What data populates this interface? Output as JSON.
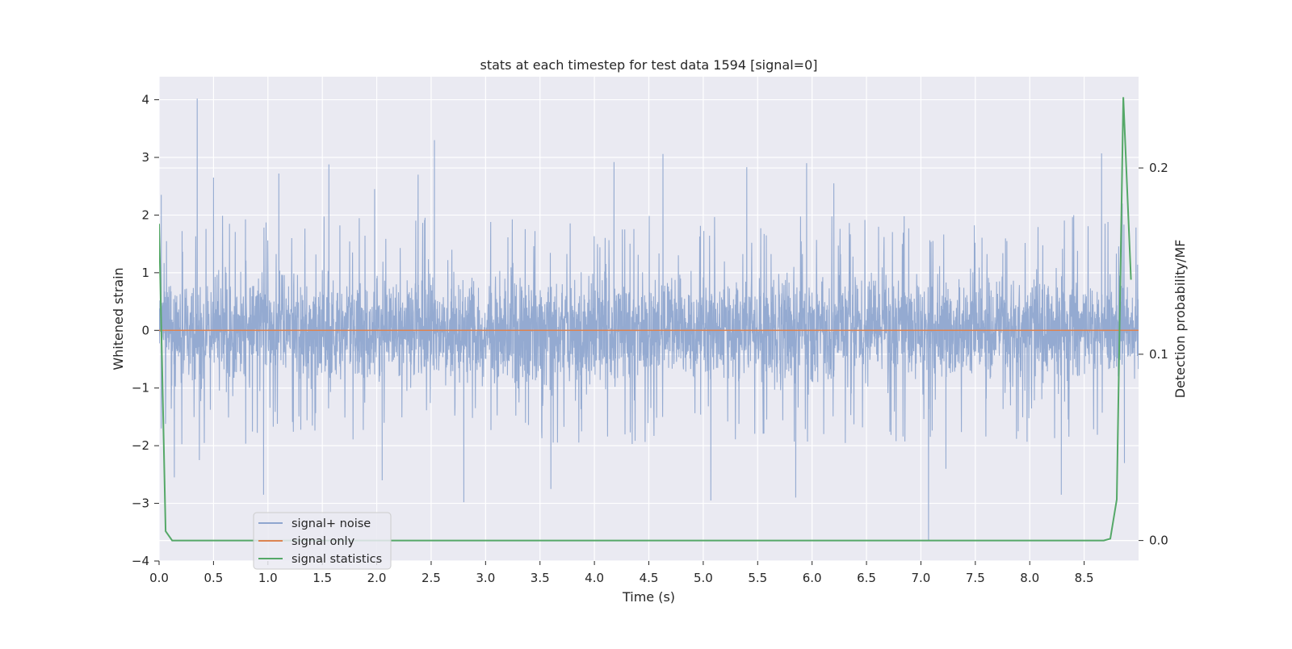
{
  "chart_data": {
    "type": "line",
    "title": "stats at each timestep for test data 1594 [signal=0]",
    "xlabel": "Time (s)",
    "ylabel": "Whitened strain",
    "y2label": "Detection probability/MF",
    "xlim": [
      0.0,
      9.0
    ],
    "ylim": [
      -4,
      4.4
    ],
    "y2lim": [
      -0.011,
      0.249
    ],
    "x_ticks": [
      "0.0",
      "0.5",
      "1.0",
      "1.5",
      "2.0",
      "2.5",
      "3.0",
      "3.5",
      "4.0",
      "4.5",
      "5.0",
      "5.5",
      "6.0",
      "6.5",
      "7.0",
      "7.5",
      "8.0",
      "8.5"
    ],
    "y_ticks": [
      "4",
      "3",
      "2",
      "1",
      "0",
      "−1",
      "−2",
      "−3",
      "−4"
    ],
    "y2_ticks": [
      "0.2",
      "0.1",
      "0.0"
    ],
    "grid": true,
    "legend_position": "lower-left",
    "series": [
      {
        "name": "signal+ noise",
        "axis": "left",
        "color": "#8fa6cf",
        "description_values": "dense whitened noise, roughly ±1.5 with spikes",
        "sampling_rate_hz": 2048,
        "duration_s": 9.0,
        "envelope": 1.45,
        "peaks": [
          {
            "x": 0.02,
            "y": 2.35
          },
          {
            "x": 0.02,
            "y": -1.7
          },
          {
            "x": 0.35,
            "y": 4.02
          },
          {
            "x": 0.37,
            "y": -2.25
          },
          {
            "x": 0.14,
            "y": -2.55
          },
          {
            "x": 0.5,
            "y": 2.65
          },
          {
            "x": 0.96,
            "y": -2.85
          },
          {
            "x": 1.1,
            "y": 2.72
          },
          {
            "x": 1.56,
            "y": 2.88
          },
          {
            "x": 1.98,
            "y": 2.45
          },
          {
            "x": 2.05,
            "y": -2.6
          },
          {
            "x": 2.38,
            "y": 2.7
          },
          {
            "x": 2.53,
            "y": 3.3
          },
          {
            "x": 2.8,
            "y": -2.98
          },
          {
            "x": 3.6,
            "y": -2.75
          },
          {
            "x": 4.18,
            "y": 2.92
          },
          {
            "x": 4.63,
            "y": 3.06
          },
          {
            "x": 5.07,
            "y": -2.95
          },
          {
            "x": 5.4,
            "y": 2.83
          },
          {
            "x": 5.95,
            "y": 2.9
          },
          {
            "x": 5.85,
            "y": -2.9
          },
          {
            "x": 6.2,
            "y": 2.55
          },
          {
            "x": 7.07,
            "y": -3.65
          },
          {
            "x": 7.23,
            "y": -2.4
          },
          {
            "x": 8.29,
            "y": -2.85
          },
          {
            "x": 8.66,
            "y": 3.07
          },
          {
            "x": 8.85,
            "y": 2.2
          },
          {
            "x": 8.87,
            "y": -2.3
          }
        ]
      },
      {
        "name": "signal only",
        "axis": "left",
        "color": "#dd8452",
        "x": [
          0.0,
          9.0
        ],
        "y": [
          0.0,
          0.0
        ]
      },
      {
        "name": "signal statistics",
        "axis": "right",
        "color": "#55a868",
        "x": [
          0.0,
          0.06,
          0.12,
          0.5,
          1.0,
          2.0,
          3.0,
          4.0,
          5.0,
          6.0,
          7.0,
          8.0,
          8.5,
          8.68,
          8.74,
          8.8,
          8.86,
          8.93
        ],
        "y": [
          0.17,
          0.005,
          0.0,
          0.0,
          0.0,
          0.0,
          0.0,
          0.0,
          0.0,
          0.0,
          0.0,
          0.0,
          0.0,
          0.0,
          0.001,
          0.022,
          0.238,
          0.14
        ]
      }
    ]
  }
}
